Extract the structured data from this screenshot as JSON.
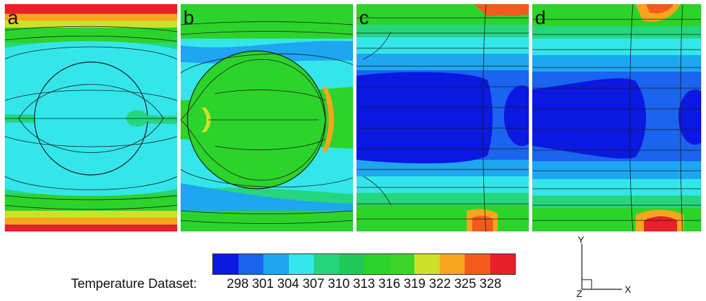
{
  "panels": [
    {
      "id": "a",
      "label": "a"
    },
    {
      "id": "b",
      "label": "b"
    },
    {
      "id": "c",
      "label": "c"
    },
    {
      "id": "d",
      "label": "d"
    }
  ],
  "legend": {
    "title": "Temperature Dataset:",
    "ticks": [
      "298",
      "301",
      "304",
      "307",
      "310",
      "313",
      "316",
      "319",
      "322",
      "325",
      "328"
    ],
    "colors": [
      "#0b18e0",
      "#1a64ee",
      "#1ea6f0",
      "#34e6ea",
      "#25d67f",
      "#22c95a",
      "#2cd32a",
      "#3cd42a",
      "#cde02a",
      "#f7a51d",
      "#f35a1c",
      "#e8202a"
    ]
  },
  "axes": {
    "y": "Y",
    "x": "X",
    "z": "Z"
  },
  "palette": {
    "red": "#e8202a",
    "orange": "#f35a1c",
    "amber": "#f7a51d",
    "yellow": "#cde02a",
    "green": "#2cd32a",
    "midgreen": "#22c95a",
    "seagreen": "#25d67f",
    "cyan": "#34e6ea",
    "sky": "#1ea6f0",
    "blue": "#1a64ee",
    "deepblue": "#0b18e0",
    "line": "#1a1a1a"
  }
}
